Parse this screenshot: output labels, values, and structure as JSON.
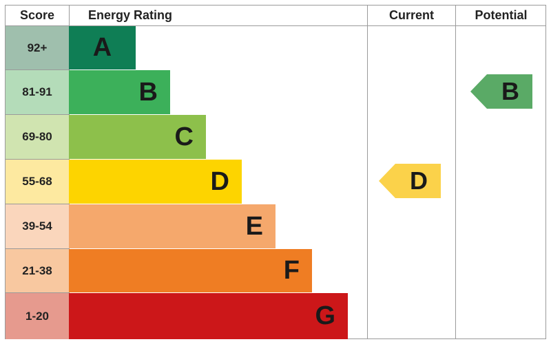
{
  "chart_data": {
    "type": "table",
    "headers": {
      "score": "Score",
      "rating": "Energy Rating",
      "current": "Current",
      "potential": "Potential"
    },
    "bands": [
      {
        "letter": "A",
        "score": "92+",
        "color": "#0f7e55",
        "score_color": "#9fbfad"
      },
      {
        "letter": "B",
        "score": "81-91",
        "color": "#3cb05a",
        "score_color": "#b4dcb9"
      },
      {
        "letter": "C",
        "score": "69-80",
        "color": "#8dc04b",
        "score_color": "#d0e4b0"
      },
      {
        "letter": "D",
        "score": "55-68",
        "color": "#fdd400",
        "score_color": "#fde9a0"
      },
      {
        "letter": "E",
        "score": "39-54",
        "color": "#f5a86c",
        "score_color": "#fad6bc"
      },
      {
        "letter": "F",
        "score": "21-38",
        "color": "#ef7d23",
        "score_color": "#f8c8a0"
      },
      {
        "letter": "G",
        "score": "1-20",
        "color": "#cc1719",
        "score_color": "#e69a8e"
      }
    ],
    "current": {
      "letter": "D",
      "color": "#fbd24a"
    },
    "potential": {
      "letter": "B",
      "color": "#5aaa66"
    }
  }
}
